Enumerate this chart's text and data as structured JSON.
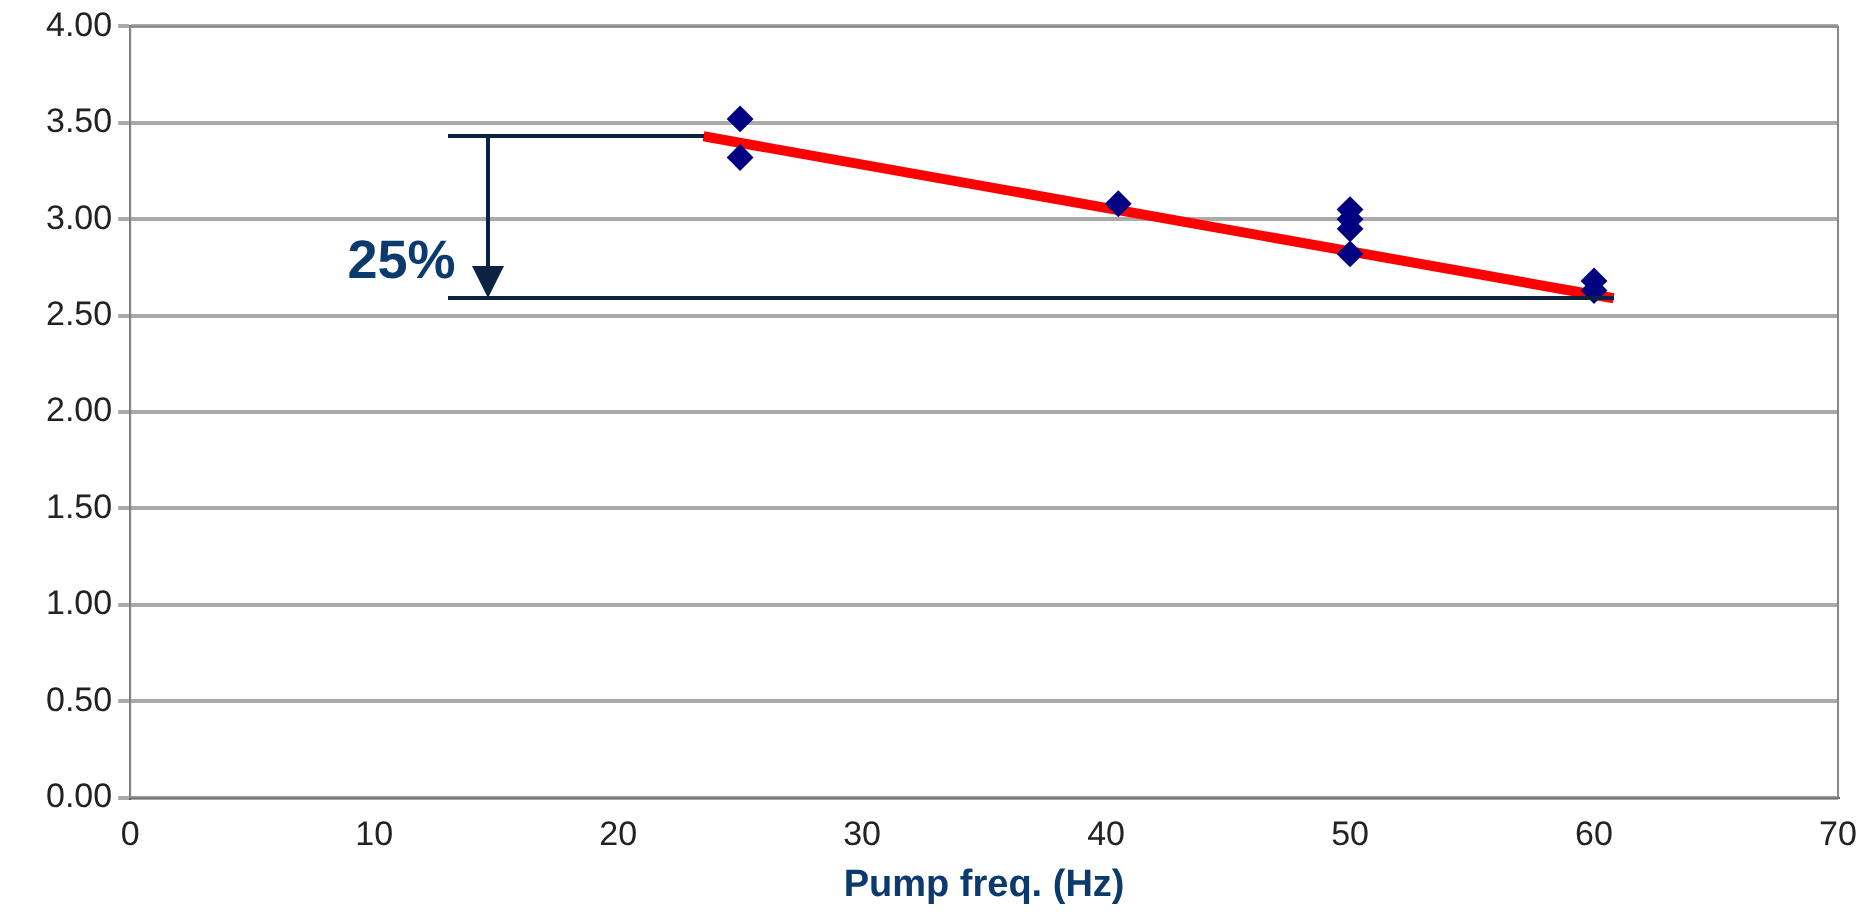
{
  "chart_data": {
    "type": "scatter",
    "xlabel": "Pump freq. (Hz)",
    "series": [
      {
        "type": "scatter",
        "color": "#000080",
        "marker": "diamond",
        "x": [
          25,
          25,
          40.5,
          50,
          50,
          50,
          50,
          60,
          60
        ],
        "values": [
          3.52,
          3.32,
          3.08,
          3.05,
          3.0,
          2.95,
          2.82,
          2.68,
          2.63
        ]
      },
      {
        "type": "line",
        "color": "#ff0000",
        "marker": "none",
        "x": [
          23.5,
          60.8
        ],
        "values": [
          3.43,
          2.59
        ]
      }
    ],
    "xlim": [
      0,
      70
    ],
    "xticks": [
      0,
      10,
      20,
      30,
      40,
      50,
      60,
      70
    ],
    "ylim": [
      0,
      4
    ],
    "yticks": [
      {
        "value": 0,
        "label": "0.00"
      },
      {
        "value": 0.5,
        "label": "0.50"
      },
      {
        "value": 1,
        "label": "1.00"
      },
      {
        "value": 1.5,
        "label": "1.50"
      },
      {
        "value": 2,
        "label": "2.00"
      },
      {
        "value": 2.5,
        "label": "2.50"
      },
      {
        "value": 3,
        "label": "3.00"
      },
      {
        "value": 3.5,
        "label": "3.50"
      },
      {
        "value": 4,
        "label": "4.00"
      }
    ],
    "grid": "y",
    "annotations": [
      "25%"
    ]
  }
}
